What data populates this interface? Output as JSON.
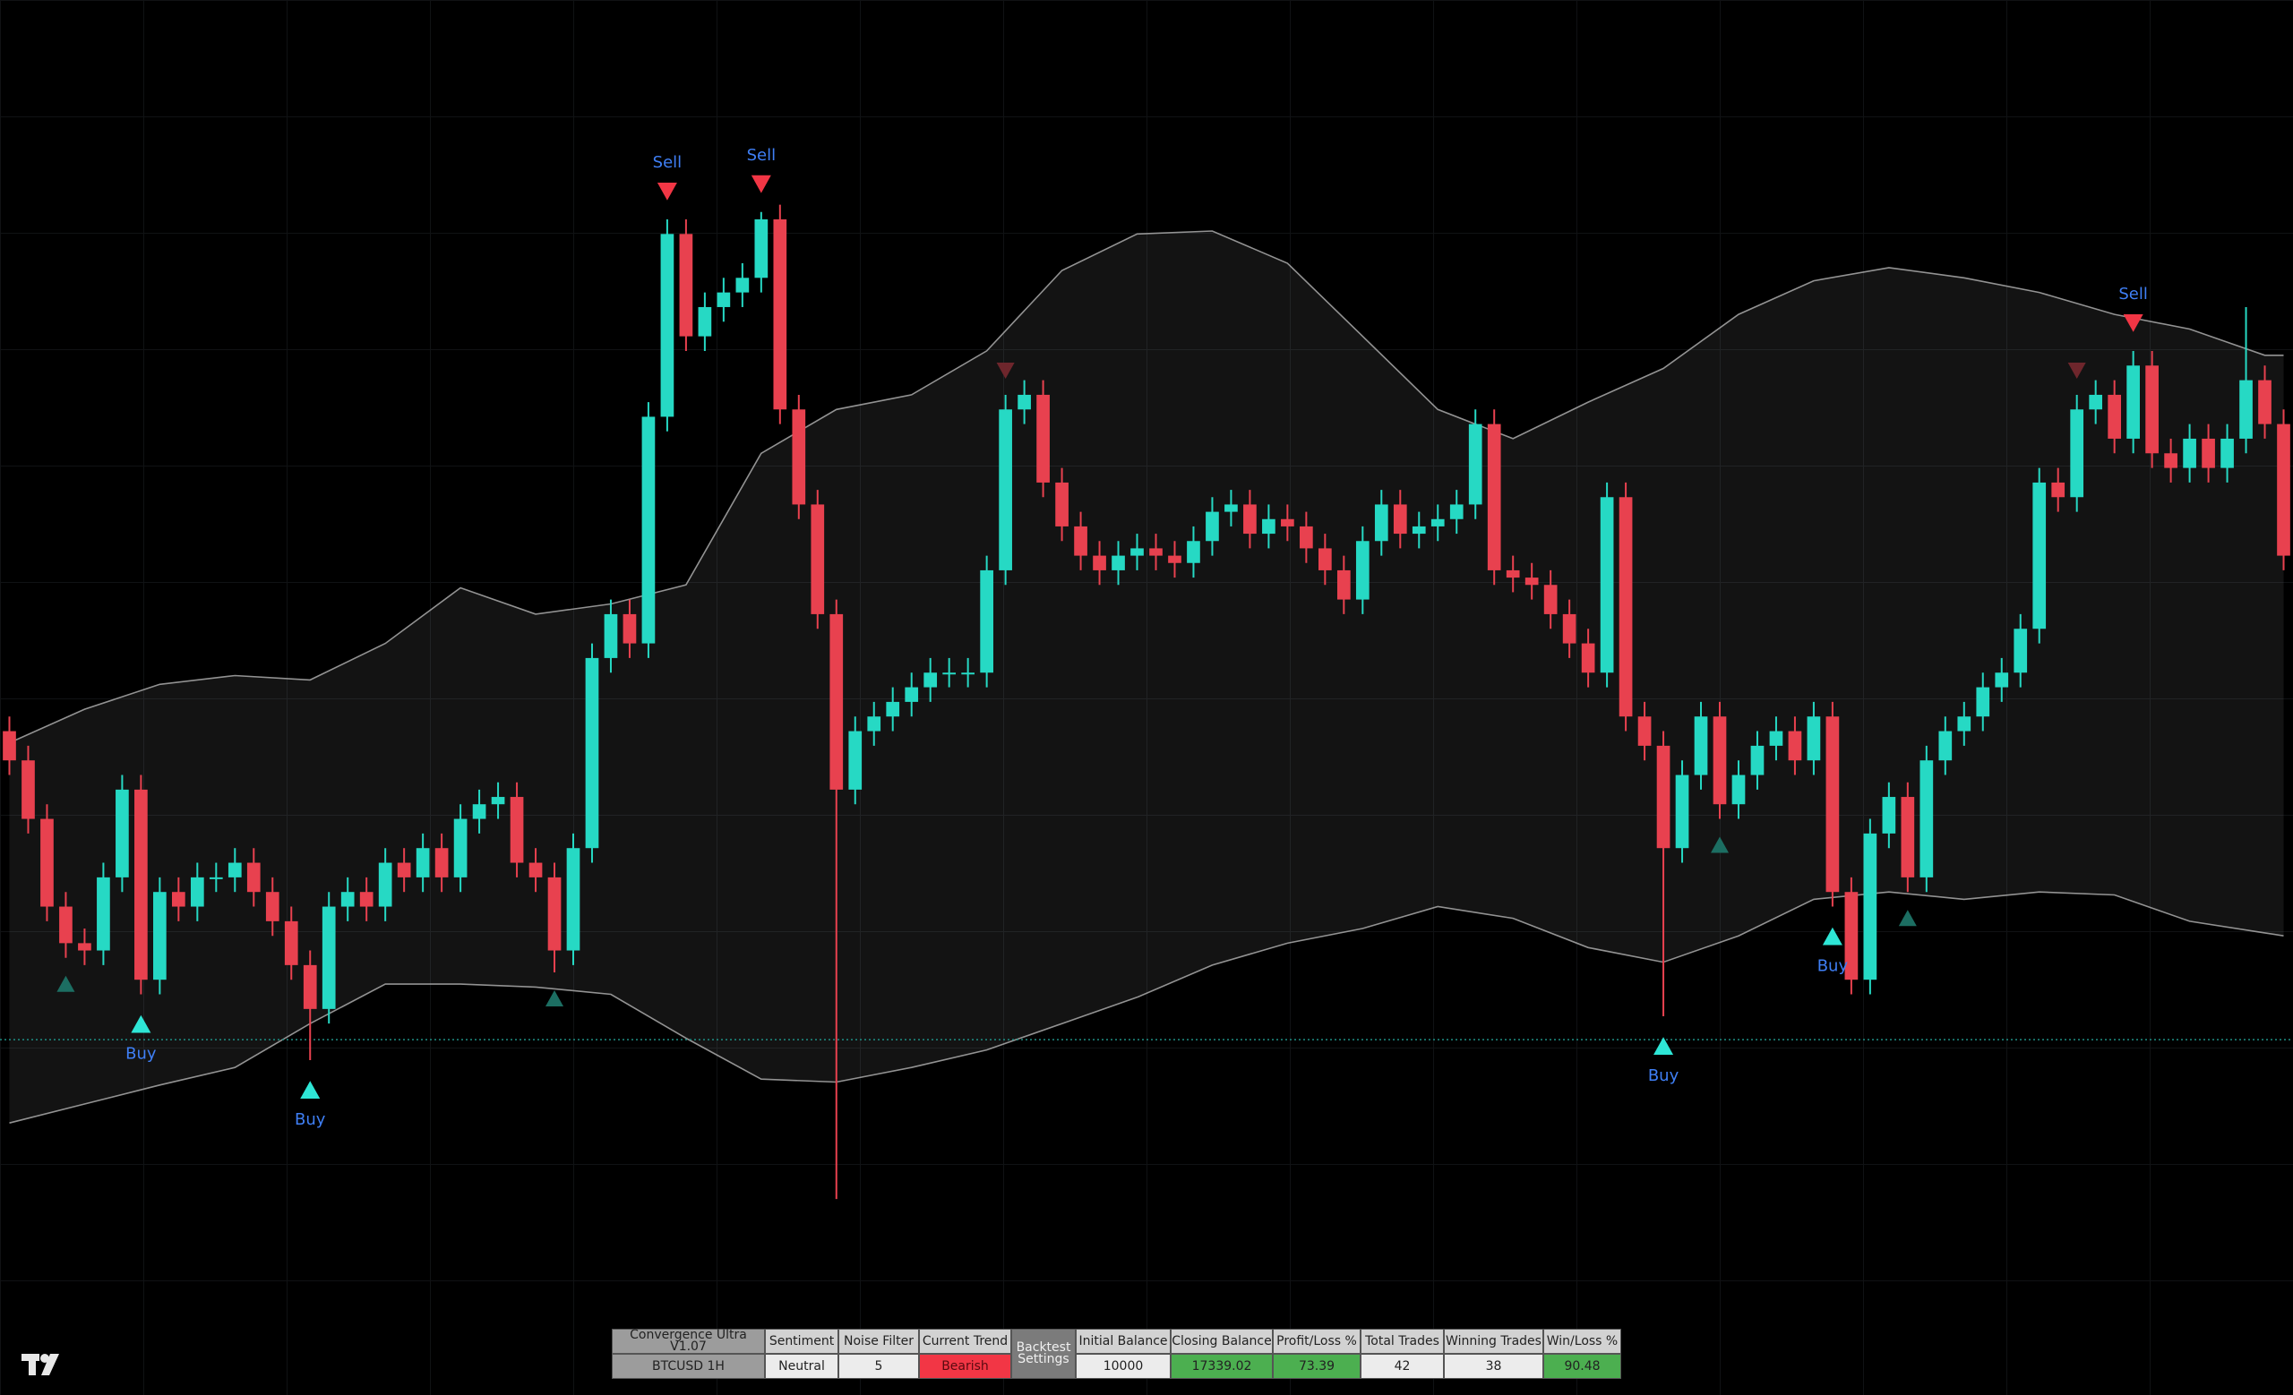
{
  "chart_data": {
    "type": "candlestick",
    "ylim": [
      0,
      954
    ],
    "up_color": "#26d9c4",
    "down_color": "#e8414f",
    "price_line": 243,
    "price_line_color": "#1f8f84",
    "candles": {
      "open": [
        454,
        434,
        394,
        334,
        309,
        304,
        354,
        414,
        284,
        344,
        334,
        354,
        354,
        364,
        344,
        324,
        294,
        264,
        334,
        344,
        334,
        364,
        354,
        374,
        354,
        394,
        404,
        409,
        364,
        354,
        304,
        374,
        504,
        534,
        514,
        669,
        794,
        724,
        744,
        754,
        764,
        804,
        674,
        609,
        534,
        414,
        454,
        464,
        474,
        484,
        494,
        494,
        494,
        564,
        674,
        684,
        624,
        594,
        574,
        564,
        574,
        579,
        574,
        569,
        584,
        604,
        609,
        589,
        599,
        594,
        579,
        564,
        544,
        584,
        609,
        589,
        594,
        599,
        609,
        664,
        564,
        559,
        554,
        534,
        514,
        494,
        614,
        464,
        444,
        374,
        424,
        464,
        404,
        424,
        444,
        454,
        434,
        464,
        344,
        284,
        384,
        409,
        354,
        434,
        454,
        464,
        484,
        494,
        524,
        624,
        614,
        674,
        684,
        654,
        704,
        644,
        634,
        654,
        634,
        654,
        694,
        664
      ],
      "high": [
        464,
        444,
        404,
        344,
        319,
        364,
        424,
        424,
        354,
        354,
        364,
        364,
        374,
        374,
        354,
        334,
        304,
        344,
        354,
        354,
        374,
        374,
        384,
        384,
        404,
        414,
        419,
        419,
        374,
        364,
        384,
        514,
        544,
        544,
        679,
        804,
        804,
        754,
        764,
        774,
        809,
        814,
        684,
        619,
        544,
        464,
        474,
        484,
        494,
        504,
        504,
        504,
        574,
        684,
        694,
        694,
        634,
        604,
        584,
        584,
        589,
        589,
        584,
        594,
        614,
        619,
        619,
        609,
        609,
        604,
        589,
        574,
        594,
        619,
        619,
        604,
        609,
        619,
        674,
        674,
        574,
        569,
        564,
        544,
        524,
        624,
        624,
        474,
        454,
        434,
        474,
        474,
        434,
        454,
        464,
        464,
        474,
        474,
        354,
        394,
        419,
        419,
        444,
        464,
        474,
        494,
        504,
        534,
        634,
        634,
        684,
        694,
        694,
        714,
        714,
        654,
        664,
        664,
        664,
        744,
        704,
        674
      ],
      "low": [
        424,
        384,
        324,
        299,
        294,
        294,
        344,
        274,
        274,
        324,
        324,
        344,
        344,
        334,
        314,
        284,
        229,
        254,
        324,
        324,
        324,
        344,
        344,
        344,
        344,
        384,
        394,
        354,
        344,
        289,
        294,
        364,
        494,
        504,
        504,
        659,
        714,
        714,
        734,
        744,
        754,
        664,
        599,
        524,
        134,
        404,
        444,
        454,
        464,
        474,
        484,
        484,
        484,
        554,
        664,
        614,
        584,
        564,
        554,
        554,
        564,
        564,
        559,
        559,
        574,
        594,
        579,
        579,
        584,
        569,
        554,
        534,
        534,
        574,
        579,
        579,
        584,
        589,
        599,
        554,
        549,
        544,
        524,
        504,
        484,
        484,
        454,
        434,
        259,
        364,
        414,
        394,
        394,
        414,
        434,
        424,
        424,
        334,
        274,
        274,
        374,
        344,
        344,
        424,
        444,
        454,
        474,
        484,
        514,
        604,
        604,
        664,
        644,
        644,
        634,
        624,
        624,
        624,
        624,
        644,
        654,
        564
      ],
      "close": [
        434,
        394,
        334,
        309,
        304,
        354,
        414,
        284,
        344,
        334,
        354,
        354,
        364,
        344,
        324,
        294,
        264,
        334,
        344,
        334,
        364,
        354,
        374,
        354,
        394,
        404,
        409,
        364,
        354,
        304,
        374,
        504,
        534,
        514,
        669,
        794,
        724,
        744,
        754,
        764,
        804,
        674,
        609,
        534,
        414,
        454,
        464,
        474,
        484,
        494,
        494,
        494,
        564,
        674,
        684,
        624,
        594,
        574,
        564,
        574,
        579,
        574,
        569,
        584,
        604,
        609,
        589,
        599,
        594,
        579,
        564,
        544,
        584,
        609,
        589,
        594,
        599,
        609,
        664,
        564,
        559,
        554,
        534,
        514,
        494,
        614,
        464,
        444,
        374,
        424,
        464,
        404,
        424,
        444,
        454,
        434,
        464,
        344,
        284,
        384,
        409,
        354,
        434,
        454,
        464,
        484,
        494,
        524,
        624,
        614,
        674,
        684,
        654,
        704,
        644,
        634,
        654,
        634,
        654,
        694,
        664,
        574
      ]
    },
    "band": {
      "color": "#b5b5b5",
      "x": [
        0,
        4,
        8,
        12,
        16,
        20,
        24,
        28,
        32,
        36,
        40,
        44,
        48,
        52,
        56,
        60,
        64,
        68,
        72,
        76,
        80,
        84,
        88,
        92,
        96,
        100,
        104,
        108,
        112,
        116,
        120,
        121
      ],
      "upper": [
        446,
        469,
        486,
        492,
        489,
        514,
        552,
        534,
        541,
        554,
        644,
        674,
        684,
        714,
        769,
        794,
        796,
        774,
        724,
        674,
        654,
        679,
        702,
        739,
        762,
        771,
        764,
        754,
        739,
        729,
        711,
        711
      ],
      "lower": [
        186,
        199,
        212,
        224,
        254,
        281,
        281,
        279,
        274,
        244,
        216,
        214,
        224,
        236,
        254,
        272,
        294,
        309,
        319,
        334,
        326,
        306,
        296,
        314,
        339,
        344,
        339,
        344,
        342,
        324,
        316,
        314
      ]
    },
    "signals": [
      {
        "text": "Buy",
        "side": "buy",
        "index": 7
      },
      {
        "text": "Buy",
        "side": "buy",
        "index": 16
      },
      {
        "text": "Sell",
        "side": "sell",
        "index": 35
      },
      {
        "text": "Sell",
        "side": "sell",
        "index": 40
      },
      {
        "text": "Buy",
        "side": "buy",
        "index": 88
      },
      {
        "text": "Buy",
        "side": "buy",
        "index": 97
      },
      {
        "text": "Sell",
        "side": "sell",
        "index": 113
      }
    ],
    "weak_signals": [
      {
        "side": "buy",
        "index": 3
      },
      {
        "side": "buy",
        "index": 29
      },
      {
        "side": "sell",
        "index": 53
      },
      {
        "side": "buy",
        "index": 91
      },
      {
        "side": "buy",
        "index": 101
      },
      {
        "side": "sell",
        "index": 110
      }
    ]
  },
  "table": {
    "columns": [
      {
        "header": "Convergence Ultra V1.07",
        "value": "BTCUSD 1H",
        "header_bg": "#9c9c9c",
        "value_bg": "#9c9c9c"
      },
      {
        "header": "Sentiment",
        "value": "Neutral",
        "header_bg": "#d2d2d2",
        "value_bg": "#ececec"
      },
      {
        "header": "Noise Filter",
        "value": "5",
        "header_bg": "#d2d2d2",
        "value_bg": "#ececec"
      },
      {
        "header": "Current Trend",
        "value": "Bearish",
        "header_bg": "#d2d2d2",
        "value_bg": "#f23645"
      },
      {
        "header": "Backtest Settings",
        "header_bg": "#7b7b7b"
      },
      {
        "header": "Initial Balance",
        "value": "10000",
        "header_bg": "#d2d2d2",
        "value_bg": "#ececec"
      },
      {
        "header": "Closing Balance",
        "value": "17339.02",
        "header_bg": "#d2d2d2",
        "value_bg": "#4caf50"
      },
      {
        "header": "Profit/Loss %",
        "value": "73.39",
        "header_bg": "#d2d2d2",
        "value_bg": "#4caf50"
      },
      {
        "header": "Total Trades",
        "value": "42",
        "header_bg": "#d2d2d2",
        "value_bg": "#ececec"
      },
      {
        "header": "Winning Trades",
        "value": "38",
        "header_bg": "#d2d2d2",
        "value_bg": "#ececec"
      },
      {
        "header": "Win/Loss %",
        "value": "90.48",
        "header_bg": "#d2d2d2",
        "value_bg": "#4caf50"
      }
    ]
  }
}
